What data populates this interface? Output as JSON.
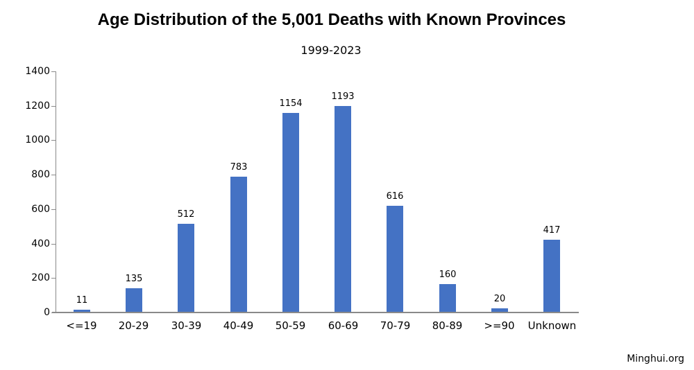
{
  "chart_data": {
    "type": "bar",
    "title": "Age Distribution of the 5,001 Deaths with Known Provinces",
    "subtitle": "1999-2023",
    "categories": [
      "<=19",
      "20-29",
      "30-39",
      "40-49",
      "50-59",
      "60-69",
      "70-79",
      "80-89",
      ">=90",
      "Unknown"
    ],
    "values": [
      11,
      135,
      512,
      783,
      1154,
      1193,
      616,
      160,
      20,
      417
    ],
    "xlabel": "",
    "ylabel": "",
    "ylim": [
      0,
      1400
    ],
    "ytick_step": 200,
    "ytick_labels": [
      "0",
      "200",
      "400",
      "600",
      "800",
      "1000",
      "1200",
      "1400"
    ],
    "grid": false,
    "legend": false,
    "value_labels_shown": true,
    "bar_color": "#4472C4",
    "axis_color": "#898989",
    "text_color": "#000000"
  },
  "footer": {
    "source": "Minghui.org"
  }
}
